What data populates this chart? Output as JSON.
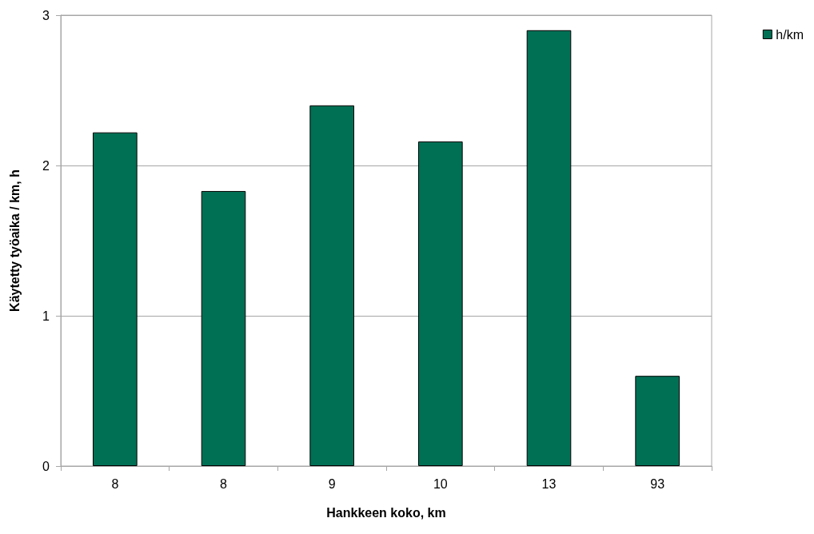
{
  "chart_data": {
    "type": "bar",
    "xlabel": "Hankkeen koko, km",
    "ylabel": "Käytetty työaika / km, h",
    "categories": [
      "8",
      "8",
      "9",
      "10",
      "13",
      "93"
    ],
    "series": [
      {
        "name": "h/km",
        "color": "#007055",
        "values": [
          2.22,
          1.83,
          2.4,
          2.16,
          2.9,
          0.6
        ]
      }
    ],
    "ylim": [
      0,
      3
    ],
    "yticks": [
      0,
      1,
      2,
      3
    ],
    "grid": "y",
    "legend": "top right"
  }
}
